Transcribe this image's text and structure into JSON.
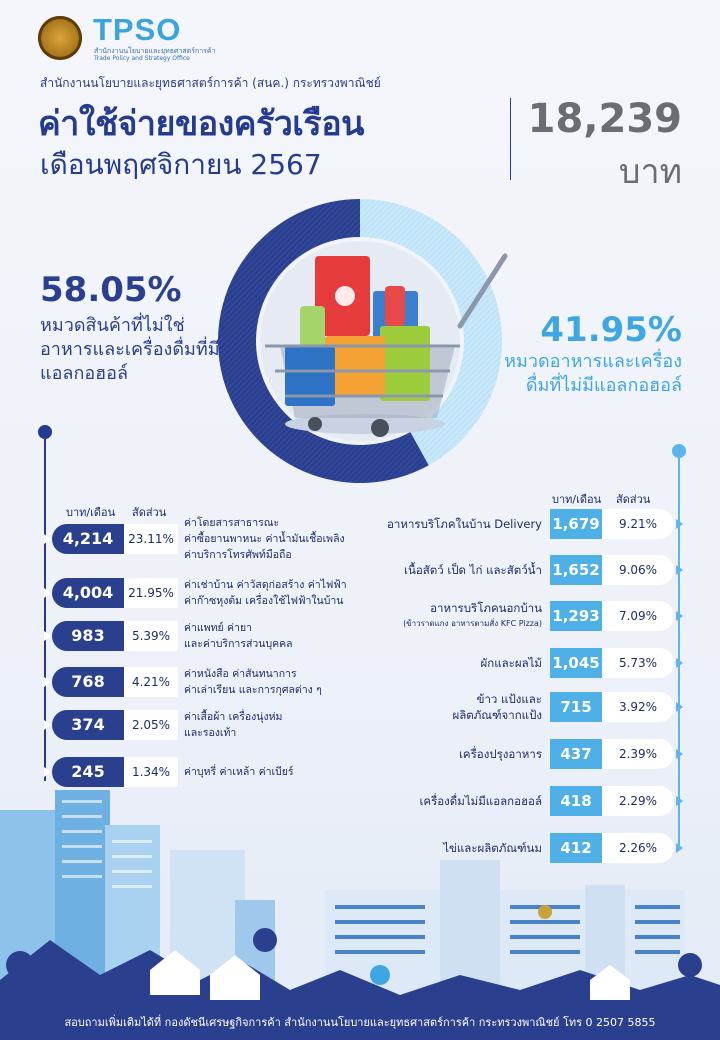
{
  "header": {
    "logo_text": "TPSO",
    "logo_sub_th": "สำนักงานนโยบายและยุทธศาสตร์การค้า",
    "logo_sub_en": "Trade Policy and Strategy Office",
    "org": "สำนักงานนโยบายและยุทธศาสตร์การค้า (สนค.) กระทรวงพาณิชย์",
    "title": "ค่าใช้จ่ายของครัวเรือน",
    "subtitle": "เดือนพฤศจิกายน 2567",
    "total_amount": "18,239",
    "total_unit": "บาท"
  },
  "colors": {
    "navy": "#2b3f8f",
    "light_blue": "#4fb0e8",
    "grey": "#6b6d73"
  },
  "chart_data": [
    {
      "type": "pie",
      "categories": [
        "หมวดสินค้าที่ไม่ใช่อาหารและเครื่องดื่มที่มีแอลกอฮอล์",
        "หมวดอาหารและเครื่องดื่มที่ไม่มีแอลกอฮอล์"
      ],
      "values": [
        58.05,
        41.95
      ],
      "labels": [
        "58.05%",
        "41.95%"
      ],
      "colors": [
        "#2b3f8f",
        "#4fb0e8"
      ]
    },
    {
      "type": "table",
      "title": "หมวดสินค้าที่ไม่ใช่อาหารและเครื่องดื่มที่มีแอลกอฮอล์",
      "columns": [
        "บาท/เดือน",
        "สัดส่วน"
      ],
      "rows": [
        {
          "amount": "4,214",
          "share": "23.11%",
          "lines": [
            "ค่าโดยสารสาธารณะ",
            "ค่าซื้อยานพาหนะ  ค่าน้ำมันเชื้อเพลิง",
            "ค่าบริการโทรศัพท์มือถือ"
          ]
        },
        {
          "amount": "4,004",
          "share": "21.95%",
          "lines": [
            "ค่าเช่าบ้าน  ค่าวัสดุก่อสร้าง  ค่าไฟฟ้า",
            "ค่าก๊าซหุงต้ม  เครื่องใช้ไฟฟ้าในบ้าน"
          ]
        },
        {
          "amount": "983",
          "share": "5.39%",
          "lines": [
            "ค่าแพทย์  ค่ายา",
            "และค่าบริการส่วนบุคคล"
          ]
        },
        {
          "amount": "768",
          "share": "4.21%",
          "lines": [
            "ค่าหนังสือ  ค่าสันทนาการ",
            "ค่าเล่าเรียน  และการกุศลต่าง ๆ"
          ]
        },
        {
          "amount": "374",
          "share": "2.05%",
          "lines": [
            "ค่าเสื้อผ้า  เครื่องนุ่งห่ม",
            "และรองเท้า"
          ]
        },
        {
          "amount": "245",
          "share": "1.34%",
          "lines": [
            "ค่าบุหรี่  ค่าเหล้า  ค่าเบียร์"
          ]
        }
      ]
    },
    {
      "type": "table",
      "title": "หมวดอาหารและเครื่องดื่มที่ไม่มีแอลกอฮอล์",
      "columns": [
        "บาท/เดือน",
        "สัดส่วน"
      ],
      "rows": [
        {
          "amount": "1,679",
          "share": "9.21%",
          "lines": [
            "อาหารบริโภคในบ้าน  Delivery"
          ]
        },
        {
          "amount": "1,652",
          "share": "9.06%",
          "lines": [
            "เนื้อสัตว์  เป็ด  ไก่  และสัตว์น้ำ"
          ]
        },
        {
          "amount": "1,293",
          "share": "7.09%",
          "lines": [
            "อาหารบริโภคนอกบ้าน"
          ],
          "note": "(ข้าวราดแกง  อาหารตามสั่ง  KFC  Pizza)"
        },
        {
          "amount": "1,045",
          "share": "5.73%",
          "lines": [
            "ผักและผลไม้"
          ]
        },
        {
          "amount": "715",
          "share": "3.92%",
          "lines": [
            "ข้าว  แป้งและ",
            "ผลิตภัณฑ์จากแป้ง"
          ]
        },
        {
          "amount": "437",
          "share": "2.39%",
          "lines": [
            "เครื่องปรุงอาหาร"
          ]
        },
        {
          "amount": "418",
          "share": "2.29%",
          "lines": [
            "เครื่องดื่มไม่มีแอลกอฮอล์"
          ]
        },
        {
          "amount": "412",
          "share": "2.26%",
          "lines": [
            "ไข่และผลิตภัณฑ์นม"
          ]
        }
      ]
    }
  ],
  "footer": "สอบถามเพิ่มเติมได้ที่  กองดัชนีเศรษฐกิจการค้า  สำนักงานนโยบายและยุทธศาสตร์การค้า  กระทรวงพาณิชย์  โทร  0  2507  5855"
}
